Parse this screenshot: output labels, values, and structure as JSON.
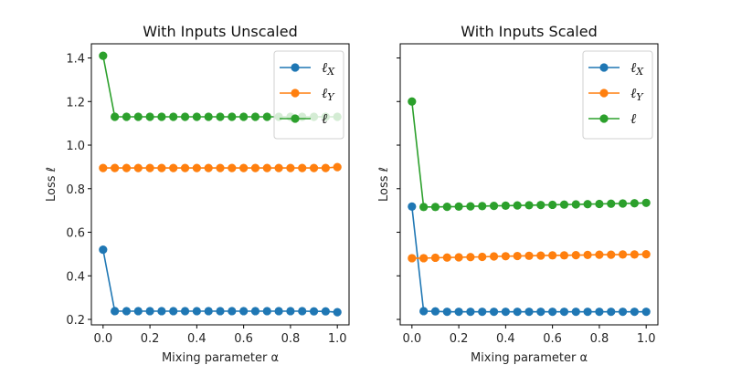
{
  "chart_data": [
    {
      "type": "line",
      "title": "With Inputs Unscaled",
      "xlabel": "Mixing parameter α",
      "ylabel": "Loss ℓ",
      "xlim": [
        -0.05,
        1.05
      ],
      "ylim": [
        0.175,
        1.465
      ],
      "xticks": [
        0.0,
        0.2,
        0.4,
        0.6,
        0.8,
        1.0
      ],
      "xtick_labels": [
        "0.0",
        "0.2",
        "0.4",
        "0.6",
        "0.8",
        "1.0"
      ],
      "yticks": [
        0.2,
        0.4,
        0.6,
        0.8,
        1.0,
        1.2,
        1.4
      ],
      "ytick_labels": [
        "0.2",
        "0.4",
        "0.6",
        "0.8",
        "1.0",
        "1.2",
        "1.4"
      ],
      "show_ytick_labels": true,
      "grid": false,
      "legend_position": "top-right",
      "x": [
        0.0,
        0.05,
        0.1,
        0.15,
        0.2,
        0.25,
        0.3,
        0.35,
        0.4,
        0.45,
        0.5,
        0.55,
        0.6,
        0.65,
        0.7,
        0.75,
        0.8,
        0.85,
        0.9,
        0.95,
        1.0
      ],
      "series": [
        {
          "name": "ℓX",
          "label_main": "ℓ",
          "label_sub": "X",
          "color": "#1f77b4",
          "values": [
            0.52,
            0.238,
            0.238,
            0.238,
            0.238,
            0.238,
            0.238,
            0.238,
            0.238,
            0.238,
            0.238,
            0.238,
            0.238,
            0.238,
            0.238,
            0.238,
            0.238,
            0.238,
            0.237,
            0.237,
            0.233
          ]
        },
        {
          "name": "ℓY",
          "label_main": "ℓ",
          "label_sub": "Y",
          "color": "#ff7f0e",
          "values": [
            0.895,
            0.895,
            0.895,
            0.895,
            0.895,
            0.895,
            0.895,
            0.895,
            0.895,
            0.895,
            0.895,
            0.895,
            0.895,
            0.895,
            0.895,
            0.895,
            0.895,
            0.895,
            0.895,
            0.895,
            0.899
          ]
        },
        {
          "name": "ℓ",
          "label_main": "ℓ",
          "label_sub": "",
          "color": "#2ca02c",
          "values": [
            1.41,
            1.13,
            1.13,
            1.13,
            1.13,
            1.13,
            1.13,
            1.13,
            1.13,
            1.13,
            1.13,
            1.13,
            1.13,
            1.13,
            1.13,
            1.13,
            1.13,
            1.13,
            1.13,
            1.13,
            1.13
          ]
        }
      ]
    },
    {
      "type": "line",
      "title": "With Inputs Scaled",
      "xlabel": "Mixing parameter α",
      "ylabel": "Loss ℓ",
      "xlim": [
        -0.05,
        1.05
      ],
      "ylim": [
        0.175,
        1.465
      ],
      "xticks": [
        0.0,
        0.2,
        0.4,
        0.6,
        0.8,
        1.0
      ],
      "xtick_labels": [
        "0.0",
        "0.2",
        "0.4",
        "0.6",
        "0.8",
        "1.0"
      ],
      "yticks": [
        0.2,
        0.4,
        0.6,
        0.8,
        1.0,
        1.2,
        1.4
      ],
      "ytick_labels": [],
      "show_ytick_labels": false,
      "grid": false,
      "legend_position": "top-right",
      "x": [
        0.0,
        0.05,
        0.1,
        0.15,
        0.2,
        0.25,
        0.3,
        0.35,
        0.4,
        0.45,
        0.5,
        0.55,
        0.6,
        0.65,
        0.7,
        0.75,
        0.8,
        0.85,
        0.9,
        0.95,
        1.0
      ],
      "series": [
        {
          "name": "ℓX",
          "label_main": "ℓ",
          "label_sub": "X",
          "color": "#1f77b4",
          "values": [
            0.718,
            0.238,
            0.237,
            0.235,
            0.235,
            0.235,
            0.235,
            0.235,
            0.235,
            0.235,
            0.235,
            0.235,
            0.235,
            0.235,
            0.235,
            0.235,
            0.235,
            0.235,
            0.235,
            0.235,
            0.235
          ]
        },
        {
          "name": "ℓY",
          "label_main": "ℓ",
          "label_sub": "Y",
          "color": "#ff7f0e",
          "values": [
            0.481,
            0.481,
            0.483,
            0.484,
            0.485,
            0.486,
            0.487,
            0.489,
            0.49,
            0.491,
            0.492,
            0.493,
            0.494,
            0.494,
            0.495,
            0.496,
            0.497,
            0.497,
            0.498,
            0.498,
            0.499
          ]
        },
        {
          "name": "ℓ",
          "label_main": "ℓ",
          "label_sub": "",
          "color": "#2ca02c",
          "values": [
            1.2,
            0.716,
            0.716,
            0.717,
            0.718,
            0.719,
            0.72,
            0.721,
            0.722,
            0.723,
            0.724,
            0.725,
            0.726,
            0.727,
            0.728,
            0.729,
            0.73,
            0.731,
            0.732,
            0.733,
            0.735
          ]
        }
      ]
    }
  ]
}
